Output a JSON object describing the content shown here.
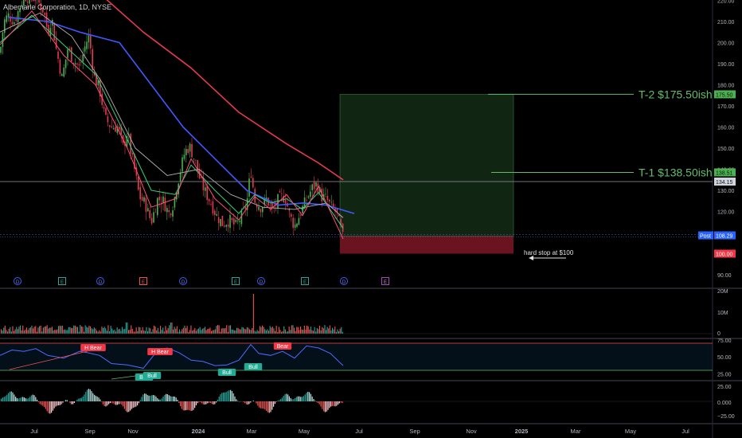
{
  "chart_data": {
    "type": "candlestick",
    "title": "Albemarle Corporation, 1D, NYSE",
    "x_ticks": [
      "Jul",
      "Sep",
      "Nov",
      "2024",
      "Mar",
      "May",
      "Jul",
      "Sep",
      "Nov",
      "2025",
      "Mar",
      "May",
      "Jul"
    ],
    "y_ticks": [
      "220.00",
      "210.00",
      "200.00",
      "190.00",
      "180.00",
      "170.00",
      "160.00",
      "150.00",
      "140.00",
      "130.00",
      "120.00",
      "110.00",
      "90.00"
    ],
    "price_close": [
      [
        0,
        195
      ],
      [
        5,
        210
      ],
      [
        10,
        213
      ],
      [
        18,
        210
      ],
      [
        30,
        222
      ],
      [
        45,
        221
      ],
      [
        55,
        215
      ],
      [
        60,
        205
      ],
      [
        65,
        212
      ],
      [
        70,
        198
      ],
      [
        78,
        183
      ],
      [
        85,
        197
      ],
      [
        92,
        192
      ],
      [
        100,
        188
      ],
      [
        108,
        200
      ],
      [
        112,
        203
      ],
      [
        118,
        184
      ],
      [
        125,
        178
      ],
      [
        132,
        164
      ],
      [
        140,
        160
      ],
      [
        148,
        160
      ],
      [
        155,
        150
      ],
      [
        160,
        158
      ],
      [
        165,
        147
      ],
      [
        170,
        138
      ],
      [
        175,
        127
      ],
      [
        182,
        124
      ],
      [
        190,
        115
      ],
      [
        198,
        126
      ],
      [
        205,
        125
      ],
      [
        212,
        119
      ],
      [
        218,
        124
      ],
      [
        225,
        137
      ],
      [
        232,
        148
      ],
      [
        238,
        151
      ],
      [
        245,
        144
      ],
      [
        252,
        134
      ],
      [
        258,
        129
      ],
      [
        265,
        124
      ],
      [
        272,
        118
      ],
      [
        280,
        114
      ],
      [
        288,
        116
      ],
      [
        296,
        113
      ],
      [
        304,
        118
      ],
      [
        310,
        124
      ],
      [
        315,
        140
      ],
      [
        320,
        125
      ],
      [
        328,
        122
      ],
      [
        335,
        126
      ],
      [
        342,
        120
      ],
      [
        350,
        126
      ],
      [
        358,
        127
      ],
      [
        364,
        118
      ],
      [
        370,
        113
      ],
      [
        376,
        118
      ],
      [
        384,
        125
      ],
      [
        392,
        131
      ],
      [
        398,
        133
      ],
      [
        404,
        127
      ],
      [
        410,
        126
      ],
      [
        416,
        122
      ],
      [
        422,
        120
      ],
      [
        428,
        112
      ],
      [
        431,
        107
      ]
    ],
    "sma_red": [
      [
        0,
        250
      ],
      [
        60,
        242
      ],
      [
        120,
        225
      ],
      [
        180,
        205
      ],
      [
        240,
        188
      ],
      [
        300,
        167
      ],
      [
        360,
        152
      ],
      [
        400,
        143
      ],
      [
        431,
        135
      ]
    ],
    "sma_blue": [
      [
        10,
        212
      ],
      [
        60,
        210
      ],
      [
        100,
        205
      ],
      [
        150,
        200
      ],
      [
        190,
        180
      ],
      [
        230,
        160
      ],
      [
        270,
        145
      ],
      [
        310,
        130
      ],
      [
        350,
        123
      ],
      [
        380,
        124
      ],
      [
        410,
        123
      ],
      [
        445,
        119
      ]
    ],
    "ema_grey": [
      [
        0,
        205
      ],
      [
        50,
        214
      ],
      [
        90,
        203
      ],
      [
        130,
        180
      ],
      [
        170,
        150
      ],
      [
        210,
        137
      ],
      [
        250,
        140
      ],
      [
        290,
        128
      ],
      [
        330,
        122
      ],
      [
        370,
        121
      ],
      [
        410,
        124
      ],
      [
        431,
        117
      ]
    ],
    "ema_green": [
      [
        0,
        200
      ],
      [
        40,
        213
      ],
      [
        80,
        199
      ],
      [
        120,
        185
      ],
      [
        160,
        154
      ],
      [
        190,
        130
      ],
      [
        220,
        128
      ],
      [
        240,
        142
      ],
      [
        270,
        130
      ],
      [
        300,
        119
      ],
      [
        320,
        128
      ],
      [
        340,
        124
      ],
      [
        360,
        126
      ],
      [
        380,
        121
      ],
      [
        400,
        129
      ],
      [
        431,
        112
      ]
    ],
    "ema_pink": [
      [
        0,
        199
      ],
      [
        40,
        215
      ],
      [
        80,
        194
      ],
      [
        120,
        180
      ],
      [
        160,
        150
      ],
      [
        190,
        122
      ],
      [
        220,
        126
      ],
      [
        240,
        145
      ],
      [
        270,
        126
      ],
      [
        300,
        116
      ],
      [
        320,
        127
      ],
      [
        340,
        121
      ],
      [
        360,
        128
      ],
      [
        380,
        118
      ],
      [
        400,
        132
      ],
      [
        431,
        107
      ]
    ],
    "horizontal_line": 134.15,
    "target_zone": {
      "entry": 108.29,
      "target": 175.5,
      "stop": 100,
      "x_start": 427,
      "x_end": 645
    },
    "annotations": [
      {
        "text": "T-2 $175.50ish",
        "price": 175.5
      },
      {
        "text": "T-1 $138.50ish",
        "price": 138.51
      },
      {
        "text": "hard stop at $100",
        "price": 100
      }
    ],
    "price_labels": {
      "t2": "175.50",
      "t1": "138.51",
      "hline": "134.15",
      "post_tag": "Post",
      "post": "108.29",
      "stop": "100.00"
    },
    "event_markers": [
      {
        "label": "D",
        "type": "dividend"
      },
      {
        "label": "E",
        "type": "earnings"
      },
      {
        "label": "D",
        "type": "dividend"
      },
      {
        "label": "E",
        "type": "earnings-miss"
      },
      {
        "label": "D",
        "type": "dividend"
      },
      {
        "label": "E",
        "type": "earnings"
      },
      {
        "label": "D",
        "type": "dividend"
      },
      {
        "label": "E",
        "type": "earnings"
      },
      {
        "label": "D",
        "type": "dividend"
      },
      {
        "label": "E",
        "type": "future-earnings"
      }
    ],
    "volume_axis": [
      "20M",
      "10M",
      "0"
    ],
    "rsi": {
      "upper": 70,
      "lower": 30,
      "axis": [
        "75.00",
        "50.00",
        "25.00"
      ],
      "values": [
        [
          0,
          52
        ],
        [
          15,
          60
        ],
        [
          30,
          58
        ],
        [
          45,
          62
        ],
        [
          60,
          52
        ],
        [
          80,
          48
        ],
        [
          100,
          58
        ],
        [
          110,
          56
        ],
        [
          125,
          52
        ],
        [
          140,
          40
        ],
        [
          160,
          38
        ],
        [
          180,
          33
        ],
        [
          195,
          55
        ],
        [
          210,
          63
        ],
        [
          225,
          56
        ],
        [
          240,
          45
        ],
        [
          255,
          43
        ],
        [
          270,
          37
        ],
        [
          285,
          38
        ],
        [
          300,
          45
        ],
        [
          315,
          68
        ],
        [
          325,
          55
        ],
        [
          340,
          52
        ],
        [
          355,
          58
        ],
        [
          370,
          48
        ],
        [
          385,
          66
        ],
        [
          400,
          63
        ],
        [
          415,
          55
        ],
        [
          431,
          37
        ]
      ],
      "divergence_labels": [
        {
          "text": "H Bear",
          "kind": "bear"
        },
        {
          "text": "H Bear",
          "kind": "bear"
        },
        {
          "text": "Bear",
          "kind": "bear"
        },
        {
          "text": "Bull",
          "kind": "bull"
        },
        {
          "text": "Bull",
          "kind": "bull"
        },
        {
          "text": "Bull",
          "kind": "bull"
        },
        {
          "text": "Bull",
          "kind": "bull"
        }
      ]
    },
    "macd": {
      "axis": [
        "25.00",
        "0.000",
        "−25.00"
      ]
    }
  }
}
